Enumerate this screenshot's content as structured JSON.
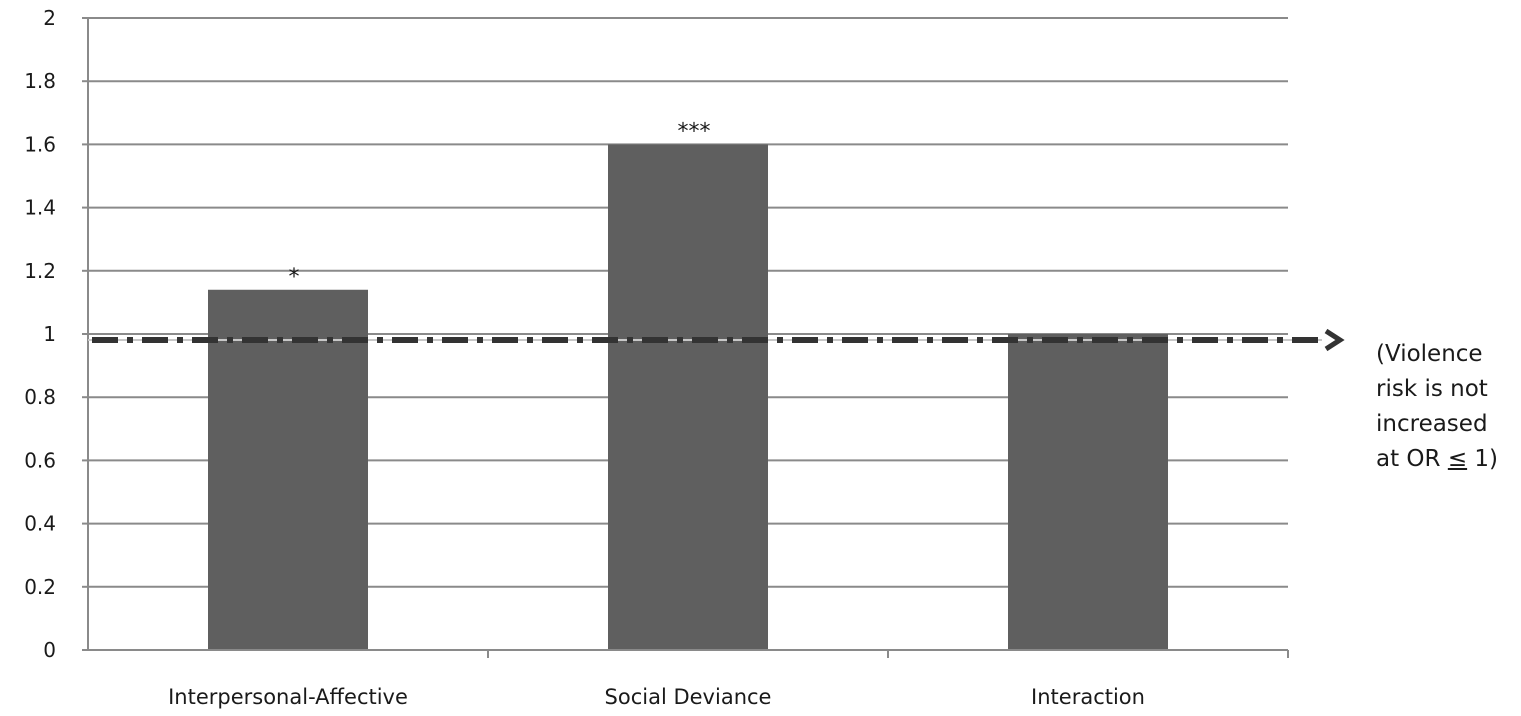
{
  "chart_data": {
    "type": "bar",
    "categories": [
      "Interpersonal-Affective",
      "Social Deviance",
      "Interaction"
    ],
    "values": [
      1.14,
      1.6,
      1.0
    ],
    "significance": [
      "*",
      "***",
      ""
    ],
    "yticks": [
      "0",
      "0.2",
      "0.4",
      "0.6",
      "0.8",
      "1",
      "1.2",
      "1.4",
      "1.6",
      "1.8",
      "2"
    ],
    "ylim": [
      0,
      2
    ],
    "grid": true,
    "reference_line": {
      "y": 1,
      "style": "dash-dot",
      "arrow": "right"
    },
    "annotation": {
      "lines": [
        "(Violence",
        "risk is not",
        "increased"
      ],
      "last_prefix": "at OR ",
      "last_symbol": "≤",
      "last_suffix": " 1)"
    },
    "title": "",
    "xlabel": "",
    "ylabel": "",
    "colors": {
      "bar": "#5f5f5f",
      "grid": "#8a8a8a",
      "axis": "#8a8a8a",
      "reference_line": "#333333"
    }
  }
}
